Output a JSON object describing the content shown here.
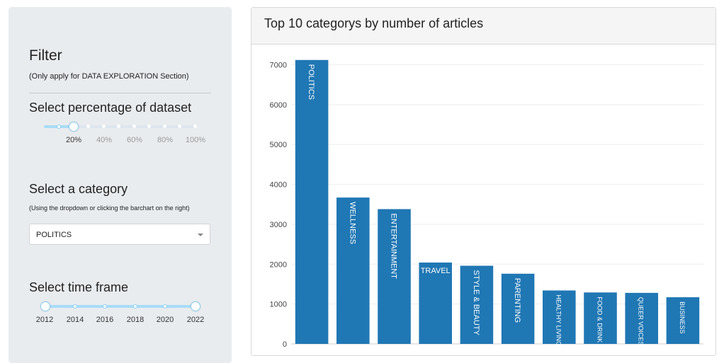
{
  "sidebar": {
    "title": "Filter",
    "subtitle": "(Only apply for DATA EXPLORATION Section)",
    "percentage": {
      "label": "Select percentage of dataset",
      "ticks": [
        "20%",
        "40%",
        "60%",
        "80%",
        "100%"
      ],
      "selected": "20%"
    },
    "category": {
      "label": "Select a category",
      "note": "(Using the dropdown or clicking the barchart on the right)",
      "selected": "POLITICS"
    },
    "timeframe": {
      "label": "Select time frame",
      "ticks": [
        "2012",
        "2014",
        "2016",
        "2018",
        "2020",
        "2022"
      ],
      "from": "2012",
      "to": "2022"
    }
  },
  "panel": {
    "title": "Top 10 categorys by number of articles"
  },
  "colors": {
    "bar": "#1f77b4",
    "slider_fill": "#a8dcf7",
    "sidebar_bg": "#e9ecef"
  },
  "chart_data": {
    "type": "bar",
    "categories": [
      "POLITICS",
      "WELLNESS",
      "ENTERTAINMENT",
      "TRAVEL",
      "STYLE & BEAUTY",
      "PARENTING",
      "HEALTHY LIVING",
      "FOOD & DRINK",
      "QUEER VOICES",
      "BUSINESS"
    ],
    "values": [
      7120,
      3670,
      3380,
      2040,
      1960,
      1760,
      1340,
      1290,
      1280,
      1170
    ],
    "yticks": [
      0,
      1000,
      2000,
      3000,
      4000,
      5000,
      6000,
      7000
    ],
    "ylim": [
      0,
      7400
    ],
    "grid": true
  }
}
